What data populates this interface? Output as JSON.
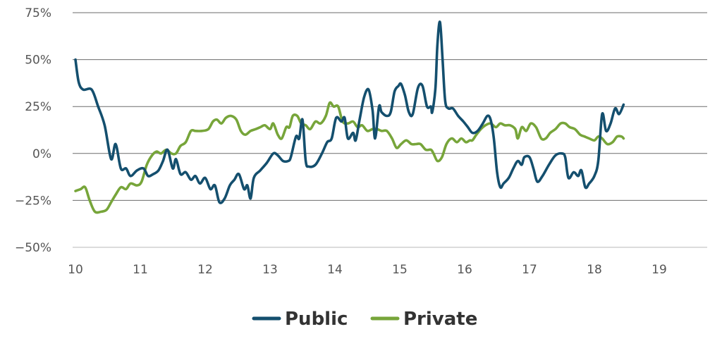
{
  "chart_data": {
    "type": "line",
    "title": "",
    "xlabel": "",
    "ylabel": "",
    "xlim": [
      10,
      19.7
    ],
    "ylim": [
      -50,
      75
    ],
    "grid": "horizontal",
    "legend_position": "bottom-center",
    "x_ticks": [
      {
        "value": 10,
        "label": "10"
      },
      {
        "value": 11,
        "label": "11"
      },
      {
        "value": 12,
        "label": "12"
      },
      {
        "value": 13,
        "label": "13"
      },
      {
        "value": 14,
        "label": "14"
      },
      {
        "value": 15,
        "label": "15"
      },
      {
        "value": 16,
        "label": "16"
      },
      {
        "value": 17,
        "label": "17"
      },
      {
        "value": 18,
        "label": "18"
      },
      {
        "value": 19,
        "label": "19"
      }
    ],
    "y_ticks": [
      {
        "value": 75,
        "label": "75%"
      },
      {
        "value": 50,
        "label": "50%"
      },
      {
        "value": 25,
        "label": "25%"
      },
      {
        "value": 0,
        "label": "0%"
      },
      {
        "value": -25,
        "label": "−25%"
      },
      {
        "value": -50,
        "label": "−50%"
      }
    ],
    "series": [
      {
        "name": "Public",
        "color": "#144f6e",
        "points": [
          [
            10.0,
            50
          ],
          [
            10.05,
            38
          ],
          [
            10.12,
            34
          ],
          [
            10.25,
            34
          ],
          [
            10.35,
            25
          ],
          [
            10.45,
            15
          ],
          [
            10.55,
            -3
          ],
          [
            10.62,
            5
          ],
          [
            10.7,
            -8
          ],
          [
            10.78,
            -8
          ],
          [
            10.85,
            -12
          ],
          [
            10.95,
            -9
          ],
          [
            11.05,
            -8
          ],
          [
            11.12,
            -12
          ],
          [
            11.2,
            -11
          ],
          [
            11.28,
            -9
          ],
          [
            11.35,
            -4
          ],
          [
            11.42,
            2
          ],
          [
            11.5,
            -8
          ],
          [
            11.55,
            -3
          ],
          [
            11.62,
            -11
          ],
          [
            11.7,
            -10
          ],
          [
            11.78,
            -14
          ],
          [
            11.85,
            -12
          ],
          [
            11.92,
            -16
          ],
          [
            12.0,
            -13
          ],
          [
            12.08,
            -19
          ],
          [
            12.15,
            -17
          ],
          [
            12.22,
            -26
          ],
          [
            12.3,
            -24
          ],
          [
            12.38,
            -17
          ],
          [
            12.45,
            -14
          ],
          [
            12.52,
            -11
          ],
          [
            12.6,
            -19
          ],
          [
            12.65,
            -17
          ],
          [
            12.7,
            -24
          ],
          [
            12.75,
            -13
          ],
          [
            12.85,
            -9
          ],
          [
            12.95,
            -5
          ],
          [
            13.05,
            0
          ],
          [
            13.12,
            -1
          ],
          [
            13.2,
            -4
          ],
          [
            13.28,
            -4
          ],
          [
            13.32,
            -2
          ],
          [
            13.4,
            9
          ],
          [
            13.45,
            8
          ],
          [
            13.5,
            18
          ],
          [
            13.55,
            -4
          ],
          [
            13.6,
            -7
          ],
          [
            13.7,
            -6
          ],
          [
            13.8,
            0
          ],
          [
            13.88,
            6
          ],
          [
            13.95,
            8
          ],
          [
            14.02,
            19
          ],
          [
            14.1,
            17
          ],
          [
            14.15,
            19
          ],
          [
            14.2,
            8
          ],
          [
            14.28,
            11
          ],
          [
            14.32,
            7
          ],
          [
            14.38,
            18
          ],
          [
            14.45,
            30
          ],
          [
            14.52,
            34
          ],
          [
            14.58,
            23
          ],
          [
            14.62,
            8
          ],
          [
            14.68,
            25
          ],
          [
            14.72,
            22
          ],
          [
            14.8,
            20
          ],
          [
            14.86,
            22
          ],
          [
            14.92,
            33
          ],
          [
            14.98,
            36
          ],
          [
            15.02,
            37
          ],
          [
            15.08,
            31
          ],
          [
            15.14,
            22
          ],
          [
            15.2,
            21
          ],
          [
            15.28,
            35
          ],
          [
            15.35,
            36
          ],
          [
            15.42,
            25
          ],
          [
            15.48,
            25
          ],
          [
            15.5,
            22
          ],
          [
            15.55,
            35
          ],
          [
            15.58,
            58
          ],
          [
            15.62,
            70
          ],
          [
            15.66,
            50
          ],
          [
            15.7,
            28
          ],
          [
            15.75,
            24
          ],
          [
            15.82,
            24
          ],
          [
            15.9,
            20
          ],
          [
            15.98,
            17
          ],
          [
            16.05,
            14
          ],
          [
            16.12,
            11
          ],
          [
            16.2,
            12
          ],
          [
            16.28,
            16
          ],
          [
            16.35,
            20
          ],
          [
            16.4,
            18
          ],
          [
            16.45,
            8
          ],
          [
            16.5,
            -10
          ],
          [
            16.55,
            -18
          ],
          [
            16.6,
            -16
          ],
          [
            16.68,
            -13
          ],
          [
            16.75,
            -8
          ],
          [
            16.82,
            -4
          ],
          [
            16.88,
            -6
          ],
          [
            16.92,
            -2
          ],
          [
            17.0,
            -2
          ],
          [
            17.06,
            -8
          ],
          [
            17.12,
            -15
          ],
          [
            17.2,
            -12
          ],
          [
            17.3,
            -6
          ],
          [
            17.4,
            -1
          ],
          [
            17.5,
            0
          ],
          [
            17.55,
            -2
          ],
          [
            17.6,
            -13
          ],
          [
            17.68,
            -10
          ],
          [
            17.75,
            -12
          ],
          [
            17.8,
            -9
          ],
          [
            17.86,
            -18
          ],
          [
            17.92,
            -16
          ],
          [
            18.0,
            -12
          ],
          [
            18.06,
            -4
          ],
          [
            18.12,
            21
          ],
          [
            18.18,
            12
          ],
          [
            18.25,
            16
          ],
          [
            18.32,
            24
          ],
          [
            18.38,
            21
          ],
          [
            18.45,
            26
          ]
        ]
      },
      {
        "name": "Private",
        "color": "#77a53a",
        "points": [
          [
            10.0,
            -20
          ],
          [
            10.08,
            -19
          ],
          [
            10.15,
            -18
          ],
          [
            10.22,
            -25
          ],
          [
            10.3,
            -31
          ],
          [
            10.4,
            -31
          ],
          [
            10.48,
            -30
          ],
          [
            10.55,
            -26
          ],
          [
            10.62,
            -22
          ],
          [
            10.7,
            -18
          ],
          [
            10.78,
            -19
          ],
          [
            10.85,
            -16
          ],
          [
            10.95,
            -17
          ],
          [
            11.02,
            -15
          ],
          [
            11.1,
            -6
          ],
          [
            11.18,
            -1
          ],
          [
            11.25,
            1
          ],
          [
            11.32,
            0
          ],
          [
            11.4,
            2
          ],
          [
            11.48,
            0
          ],
          [
            11.55,
            0
          ],
          [
            11.62,
            4
          ],
          [
            11.7,
            6
          ],
          [
            11.78,
            12
          ],
          [
            11.85,
            12
          ],
          [
            11.95,
            12
          ],
          [
            12.05,
            13
          ],
          [
            12.12,
            17
          ],
          [
            12.18,
            18
          ],
          [
            12.25,
            16
          ],
          [
            12.32,
            19
          ],
          [
            12.4,
            20
          ],
          [
            12.48,
            18
          ],
          [
            12.55,
            12
          ],
          [
            12.62,
            10
          ],
          [
            12.7,
            12
          ],
          [
            12.78,
            13
          ],
          [
            12.85,
            14
          ],
          [
            12.92,
            15
          ],
          [
            13.0,
            13
          ],
          [
            13.05,
            16
          ],
          [
            13.12,
            10
          ],
          [
            13.18,
            8
          ],
          [
            13.25,
            14
          ],
          [
            13.3,
            14
          ],
          [
            13.35,
            20
          ],
          [
            13.42,
            20
          ],
          [
            13.48,
            16
          ],
          [
            13.55,
            15
          ],
          [
            13.62,
            13
          ],
          [
            13.7,
            17
          ],
          [
            13.78,
            16
          ],
          [
            13.86,
            20
          ],
          [
            13.92,
            27
          ],
          [
            13.98,
            25
          ],
          [
            14.05,
            25
          ],
          [
            14.12,
            17
          ],
          [
            14.2,
            16
          ],
          [
            14.28,
            17
          ],
          [
            14.35,
            14
          ],
          [
            14.42,
            15
          ],
          [
            14.5,
            12
          ],
          [
            14.58,
            13
          ],
          [
            14.65,
            13
          ],
          [
            14.72,
            12
          ],
          [
            14.8,
            12
          ],
          [
            14.88,
            8
          ],
          [
            14.95,
            3
          ],
          [
            15.02,
            5
          ],
          [
            15.1,
            7
          ],
          [
            15.18,
            5
          ],
          [
            15.25,
            5
          ],
          [
            15.32,
            5
          ],
          [
            15.4,
            2
          ],
          [
            15.48,
            2
          ],
          [
            15.52,
            0
          ],
          [
            15.58,
            -4
          ],
          [
            15.65,
            -2
          ],
          [
            15.72,
            5
          ],
          [
            15.8,
            8
          ],
          [
            15.88,
            6
          ],
          [
            15.95,
            8
          ],
          [
            16.02,
            6
          ],
          [
            16.08,
            7
          ],
          [
            16.12,
            7
          ],
          [
            16.18,
            10
          ],
          [
            16.25,
            13
          ],
          [
            16.32,
            15
          ],
          [
            16.4,
            16
          ],
          [
            16.48,
            14
          ],
          [
            16.55,
            16
          ],
          [
            16.62,
            15
          ],
          [
            16.7,
            15
          ],
          [
            16.78,
            13
          ],
          [
            16.82,
            8
          ],
          [
            16.88,
            14
          ],
          [
            16.95,
            12
          ],
          [
            17.02,
            16
          ],
          [
            17.1,
            14
          ],
          [
            17.18,
            8
          ],
          [
            17.25,
            8
          ],
          [
            17.32,
            11
          ],
          [
            17.4,
            13
          ],
          [
            17.48,
            16
          ],
          [
            17.55,
            16
          ],
          [
            17.62,
            14
          ],
          [
            17.7,
            13
          ],
          [
            17.78,
            10
          ],
          [
            17.85,
            9
          ],
          [
            17.92,
            8
          ],
          [
            18.0,
            7
          ],
          [
            18.06,
            9
          ],
          [
            18.12,
            8
          ],
          [
            18.2,
            5
          ],
          [
            18.28,
            6
          ],
          [
            18.35,
            9
          ],
          [
            18.42,
            9
          ],
          [
            18.45,
            8
          ]
        ]
      }
    ],
    "legend": [
      {
        "label": "Public",
        "color": "#144f6e"
      },
      {
        "label": "Private",
        "color": "#77a53a"
      }
    ]
  }
}
